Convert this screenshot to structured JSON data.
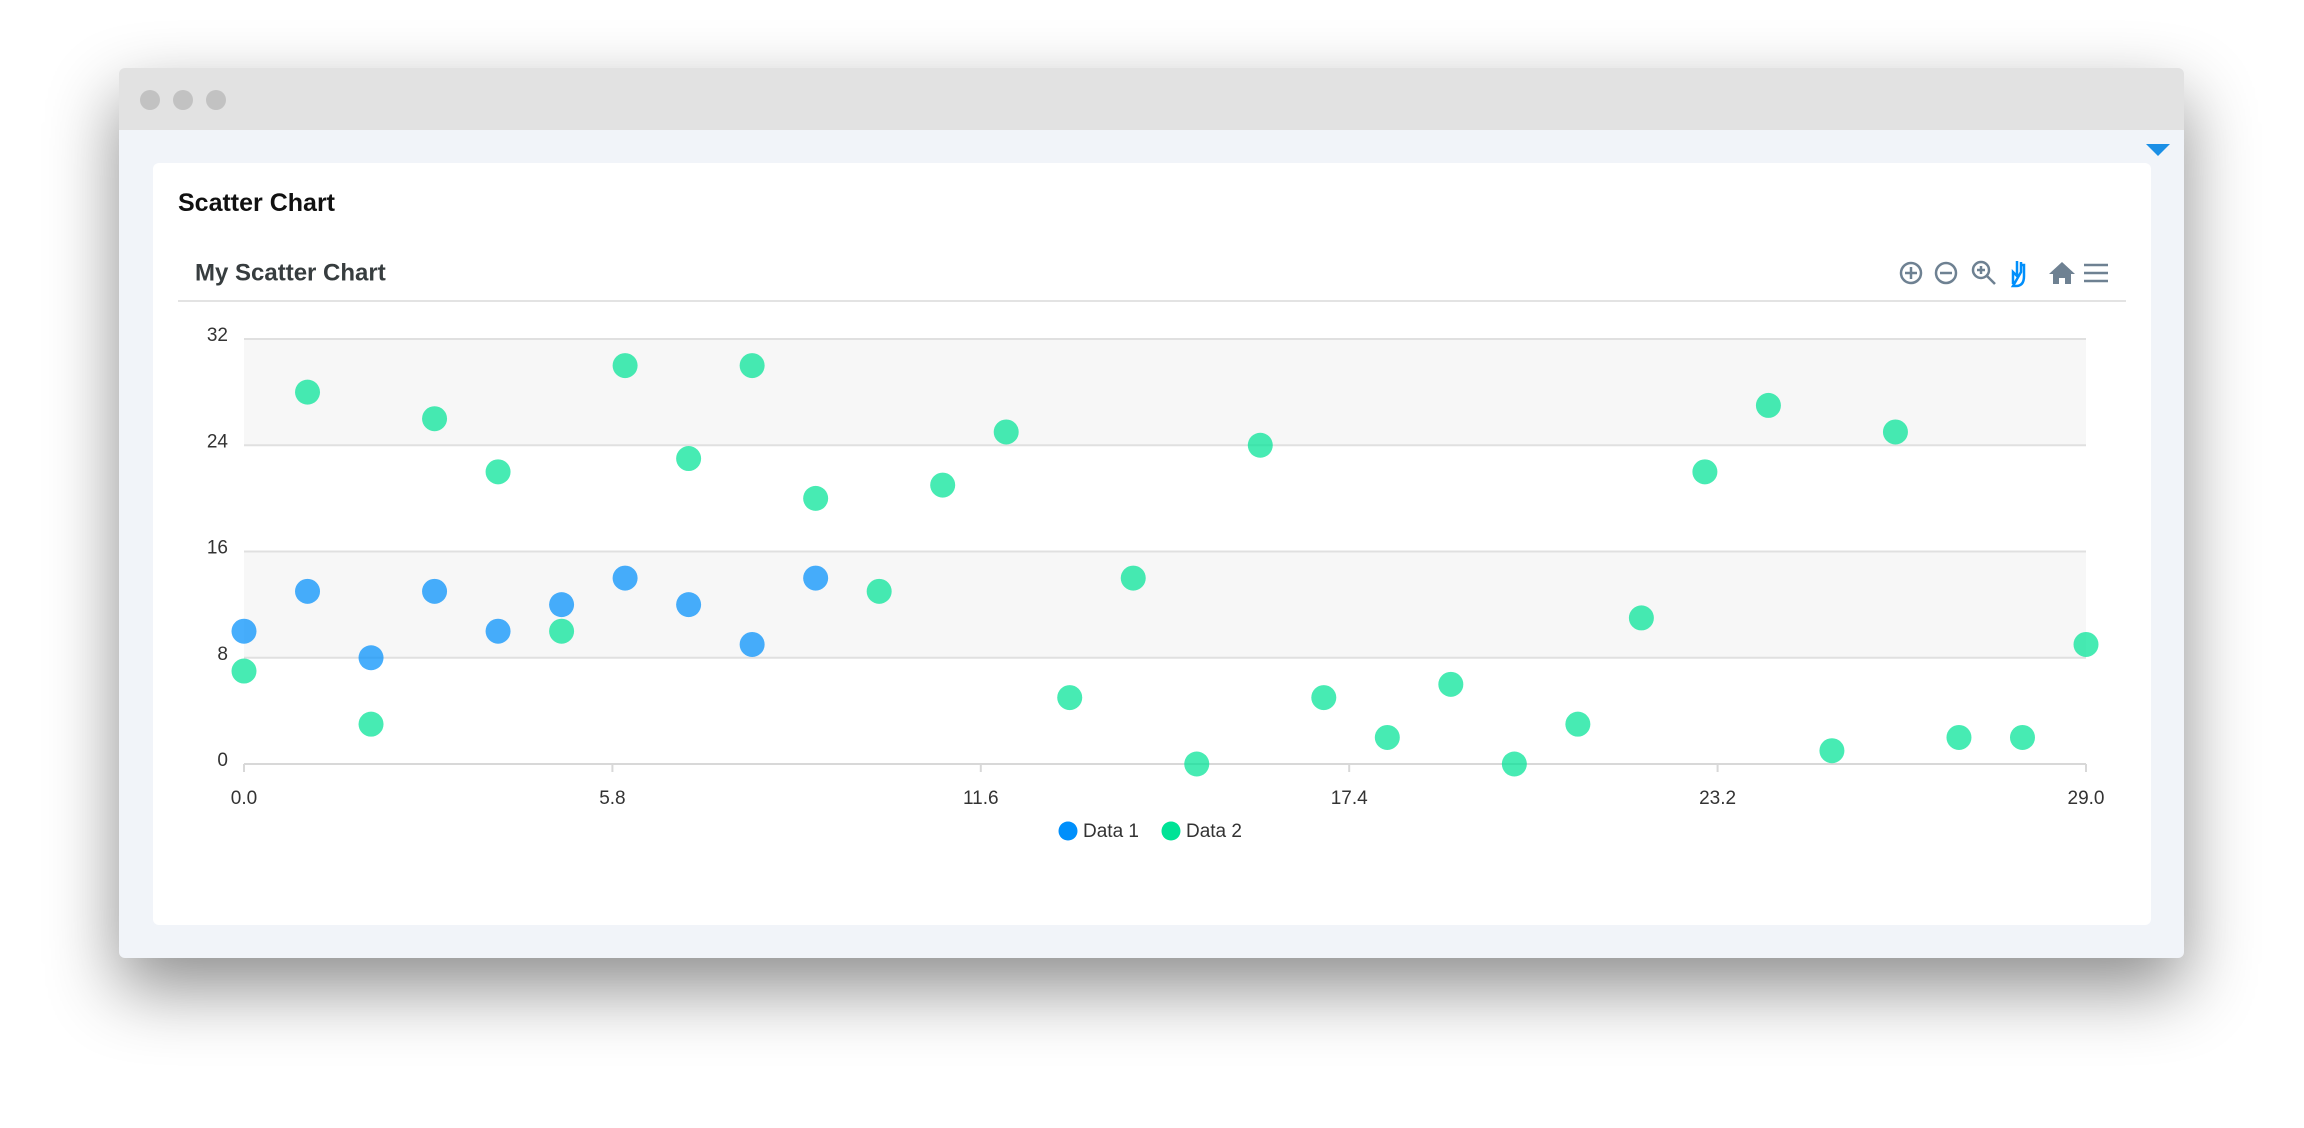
{
  "page": {
    "title": "Scatter Chart"
  },
  "chart_data": {
    "type": "scatter",
    "title": "My Scatter Chart",
    "series": [
      {
        "name": "Data 1",
        "color": "#008ffb",
        "x": [
          0,
          1,
          2,
          3,
          4,
          5,
          6,
          7,
          8,
          9
        ],
        "values": [
          10,
          13,
          8,
          13,
          10,
          12,
          14,
          12,
          9,
          14
        ]
      },
      {
        "name": "Data 2",
        "color": "#00e396",
        "x": [
          0,
          1,
          2,
          3,
          4,
          5,
          6,
          7,
          8,
          9,
          10,
          11,
          12,
          13,
          14,
          15,
          16,
          17,
          18,
          19,
          20,
          21,
          22,
          23,
          24,
          25,
          26,
          27,
          28,
          29
        ],
        "values": [
          7,
          28,
          3,
          26,
          22,
          10,
          30,
          23,
          30,
          20,
          13,
          21,
          25,
          5,
          14,
          0,
          24,
          5,
          2,
          6,
          0,
          3,
          11,
          22,
          27,
          1,
          25,
          2,
          2,
          9
        ]
      }
    ],
    "xlim": [
      0,
      29
    ],
    "xticks": [
      {
        "value": 0,
        "label": "0.0"
      },
      5.8,
      11.6,
      17.4,
      23.2,
      {
        "value": 29,
        "label": "29.0"
      }
    ],
    "ylim": [
      0,
      32
    ],
    "yticks": [
      0,
      8,
      16,
      24,
      32
    ],
    "grid": true
  }
}
